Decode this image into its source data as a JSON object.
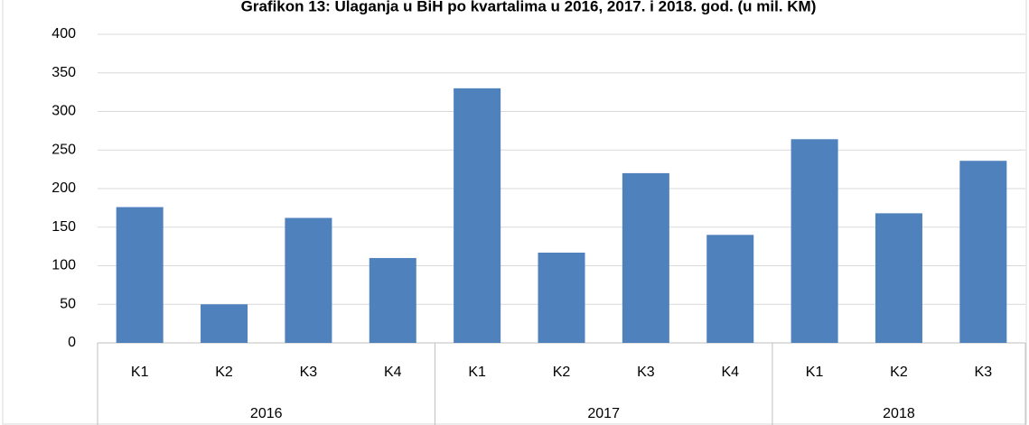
{
  "chart_data": {
    "type": "bar",
    "title": "Grafikon 13: Ulaganja u BiH po kvartalima u 2016, 2017. i 2018. god. (u mil. KM)",
    "groups": [
      {
        "name": "2016",
        "categories": [
          "K1",
          "K2",
          "K3",
          "K4"
        ],
        "values": [
          176,
          50,
          162,
          110
        ]
      },
      {
        "name": "2017",
        "categories": [
          "K1",
          "K2",
          "K3",
          "K4"
        ],
        "values": [
          330,
          117,
          220,
          140
        ]
      },
      {
        "name": "2018",
        "categories": [
          "K1",
          "K2",
          "K3"
        ],
        "values": [
          264,
          168,
          236
        ]
      }
    ],
    "color": "#4f81bd",
    "ylim": [
      0,
      400
    ],
    "yticks": [
      0,
      50,
      100,
      150,
      200,
      250,
      300,
      350,
      400
    ],
    "grid": true
  }
}
